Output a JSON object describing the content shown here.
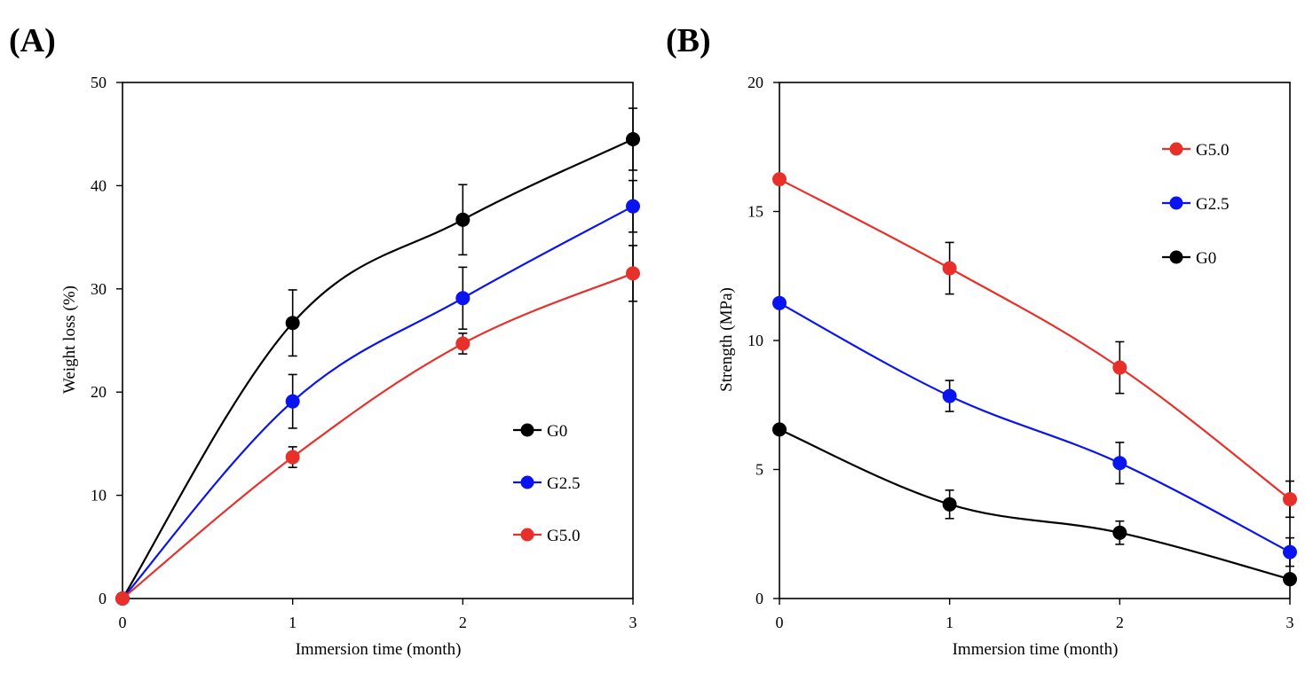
{
  "figure": {
    "panels": [
      "(A)",
      "(B)"
    ]
  },
  "chart_data": [
    {
      "type": "line",
      "panel_label": "(A)",
      "xlabel": "Immersion time (month)",
      "ylabel": "Weight loss (%)",
      "x": [
        0,
        1,
        2,
        3
      ],
      "xlim": [
        0,
        3
      ],
      "ylim": [
        0,
        50
      ],
      "xticks": [
        "0",
        "1",
        "2",
        "3"
      ],
      "yticks": [
        "0",
        "10",
        "20",
        "30",
        "40",
        "50"
      ],
      "grid": false,
      "smooth": true,
      "legend_position": "lower-right",
      "legend_order": [
        "G0",
        "G2.5",
        "G5.0"
      ],
      "series": [
        {
          "name": "G0",
          "color": "#000000",
          "values": [
            0,
            26.7,
            36.7,
            44.5
          ],
          "errors": [
            0,
            3.2,
            3.4,
            3.0
          ]
        },
        {
          "name": "G2.5",
          "color": "#0a14f0",
          "values": [
            0,
            19.1,
            29.1,
            38.0
          ],
          "errors": [
            0,
            2.6,
            3.0,
            2.5
          ]
        },
        {
          "name": "G5.0",
          "color": "#e8302a",
          "values": [
            0,
            13.7,
            24.7,
            31.5
          ],
          "errors": [
            0,
            1.0,
            1.0,
            2.7
          ]
        }
      ]
    },
    {
      "type": "line",
      "panel_label": "(B)",
      "xlabel": "Immersion time (month)",
      "ylabel": "Strength (MPa)",
      "x": [
        0,
        1,
        2,
        3
      ],
      "xlim": [
        0,
        3
      ],
      "ylim": [
        0,
        20
      ],
      "xticks": [
        "0",
        "1",
        "2",
        "3"
      ],
      "yticks": [
        "0",
        "5",
        "10",
        "15",
        "20"
      ],
      "grid": false,
      "smooth": true,
      "legend_position": "upper-right",
      "legend_order": [
        "G5.0",
        "G2.5",
        "G0"
      ],
      "series": [
        {
          "name": "G5.0",
          "color": "#e8302a",
          "values": [
            16.25,
            12.8,
            8.95,
            3.85
          ],
          "errors": [
            0,
            1.0,
            1.0,
            0.7
          ]
        },
        {
          "name": "G2.5",
          "color": "#0a14f0",
          "values": [
            11.45,
            7.85,
            5.25,
            1.8
          ],
          "errors": [
            0,
            0.6,
            0.8,
            0.55
          ]
        },
        {
          "name": "G0",
          "color": "#000000",
          "values": [
            6.55,
            3.65,
            2.55,
            0.75
          ],
          "errors": [
            0,
            0.55,
            0.45,
            0
          ]
        }
      ]
    }
  ]
}
